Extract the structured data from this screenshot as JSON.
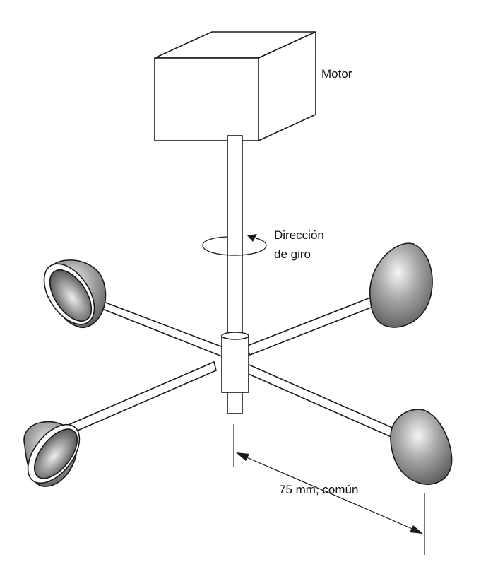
{
  "labels": {
    "motor": "Motor",
    "rotation_line1": "Dirección",
    "rotation_line2": "de giro",
    "dimension": "75 mm, común"
  },
  "colors": {
    "line": "#1a1a1a",
    "background": "#ffffff",
    "cup_light": "#f4f4f4",
    "cup_mid": "#9a9a9a",
    "cup_dark": "#5a5a5a"
  }
}
